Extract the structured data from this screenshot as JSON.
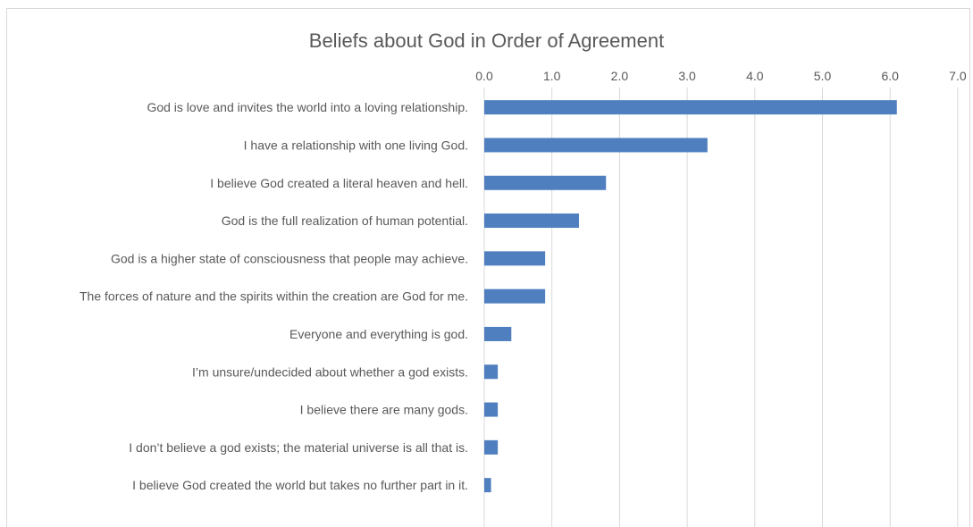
{
  "chart_data": {
    "type": "bar",
    "orientation": "horizontal",
    "title": "Beliefs about God in Order of Agreement",
    "xlim": [
      0,
      7
    ],
    "ticks": [
      "0.0",
      "1.0",
      "2.0",
      "3.0",
      "4.0",
      "5.0",
      "6.0",
      "7.0"
    ],
    "tick_values": [
      0,
      1,
      2,
      3,
      4,
      5,
      6,
      7
    ],
    "grid": true,
    "axis_position": "top",
    "categories": [
      "God is love and invites the world into a loving relationship.",
      "I have a relationship with one living God.",
      "I believe God created a literal heaven and hell.",
      "God is the full realization of human potential.",
      "God is a higher state of consciousness that people may achieve.",
      "The forces of nature and the spirits within the creation are God for me.",
      "Everyone and everything is god.",
      "I’m unsure/undecided about whether a god exists.",
      "I believe there are many gods.",
      "I don’t believe a god exists; the material universe is all that is.",
      "I believe God created the world but takes no further part in it."
    ],
    "values": [
      6.1,
      3.3,
      1.8,
      1.4,
      0.9,
      0.9,
      0.4,
      0.2,
      0.2,
      0.2,
      0.1
    ],
    "colors": {
      "bar": "#4f7fbf",
      "grid": "#d9d9d9",
      "text": "#595959"
    }
  }
}
